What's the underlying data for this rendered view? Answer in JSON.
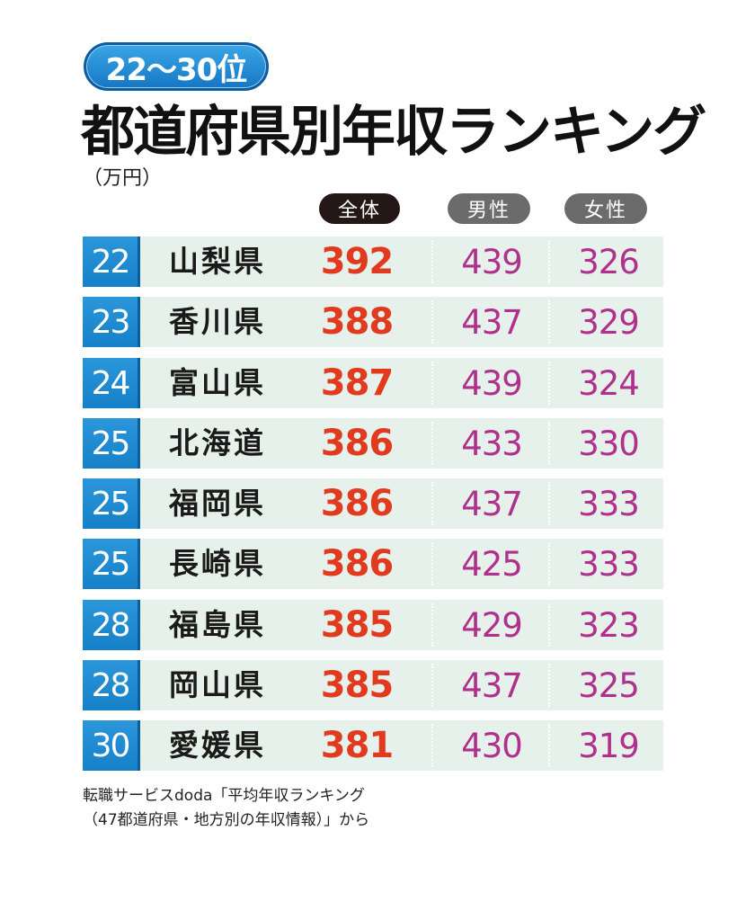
{
  "badge": "22～30位",
  "title": "都道府県別年収ランキング",
  "unit": "（万円）",
  "headers": {
    "total": "全体",
    "male": "男性",
    "female": "女性"
  },
  "chart_data": {
    "type": "table",
    "title": "都道府県別年収ランキング",
    "subtitle": "22～30位",
    "unit": "（万円）",
    "columns": [
      "全体",
      "男性",
      "女性"
    ],
    "rows": [
      {
        "rank": "22",
        "prefecture": "山梨県",
        "total": 392,
        "male": 439,
        "female": 326
      },
      {
        "rank": "23",
        "prefecture": "香川県",
        "total": 388,
        "male": 437,
        "female": 329
      },
      {
        "rank": "24",
        "prefecture": "富山県",
        "total": 387,
        "male": 439,
        "female": 324
      },
      {
        "rank": "25",
        "prefecture": "北海道",
        "total": 386,
        "male": 433,
        "female": 330
      },
      {
        "rank": "25",
        "prefecture": "福岡県",
        "total": 386,
        "male": 437,
        "female": 333
      },
      {
        "rank": "25",
        "prefecture": "長崎県",
        "total": 386,
        "male": 425,
        "female": 333
      },
      {
        "rank": "28",
        "prefecture": "福島県",
        "total": 385,
        "male": 429,
        "female": 323
      },
      {
        "rank": "28",
        "prefecture": "岡山県",
        "total": 385,
        "male": 437,
        "female": 325
      },
      {
        "rank": "30",
        "prefecture": "愛媛県",
        "total": 381,
        "male": 430,
        "female": 319
      }
    ]
  },
  "source": {
    "line1": "転職サービスdoda「平均年収ランキング",
    "line2": "（47都道府県・地方別の年収情報）」から"
  },
  "colors": {
    "rank_bg": "#1680c8",
    "row_bg": "#e5f1ea",
    "total_text": "#e23a1e",
    "gender_text": "#b0308c"
  }
}
